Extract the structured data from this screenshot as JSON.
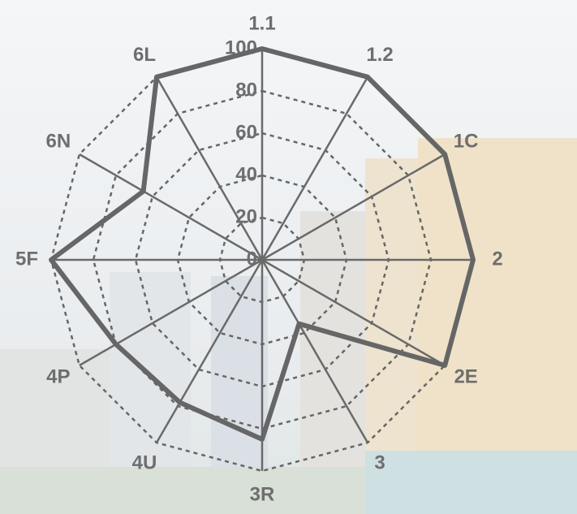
{
  "chart_data": {
    "type": "radar",
    "categories": [
      "1.1",
      "1.2",
      "1C",
      "2",
      "2E",
      "3",
      "3R",
      "4U",
      "4P",
      "5F",
      "6N",
      "6L"
    ],
    "values": [
      100,
      100,
      100,
      100,
      100,
      35,
      85,
      78,
      80,
      100,
      65,
      100
    ],
    "color": "#666666",
    "rlim": [
      0,
      100
    ],
    "rticks": [
      0,
      20,
      40,
      60,
      80,
      100
    ],
    "grid": true
  }
}
